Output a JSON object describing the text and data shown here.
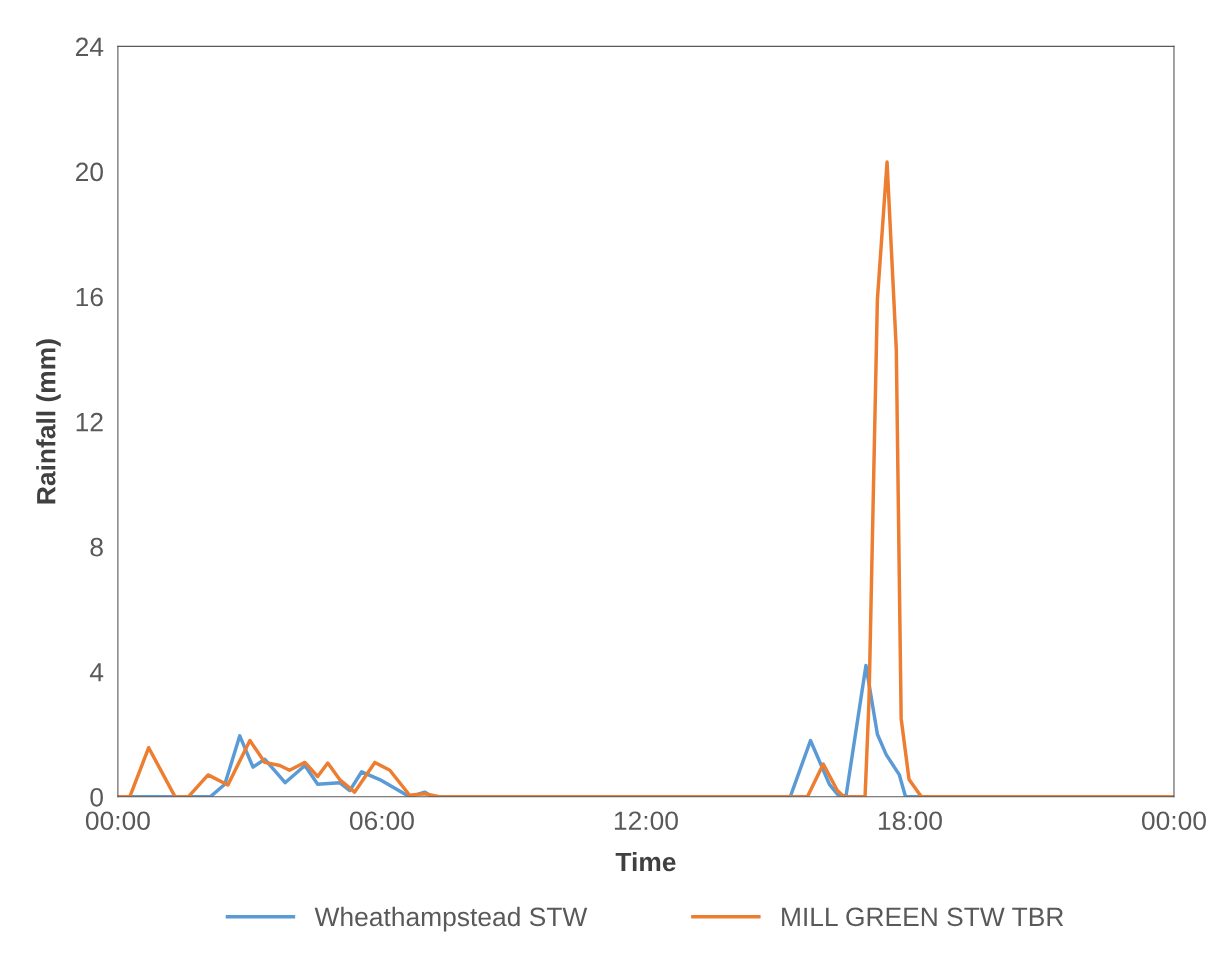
{
  "chart_data": {
    "type": "line",
    "xlabel": "Time",
    "ylabel": "Rainfall (mm)",
    "xlim": [
      0,
      24
    ],
    "xticks": [
      {
        "value": 0,
        "label": "00:00"
      },
      {
        "value": 6,
        "label": "06:00"
      },
      {
        "value": 12,
        "label": "12:00"
      },
      {
        "value": 18,
        "label": "18:00"
      },
      {
        "value": 24,
        "label": "00:00"
      }
    ],
    "ylim": [
      0,
      24
    ],
    "yticks": [
      0,
      4,
      8,
      12,
      16,
      20,
      24
    ],
    "grid": false,
    "legend": "bottom",
    "marker": "none",
    "line_style": "solid",
    "series": [
      {
        "name": "Wheathampstead STW",
        "color": "#5b9bd5",
        "x": [
          0,
          2.1,
          2.43,
          2.77,
          3.07,
          3.34,
          3.8,
          4.25,
          4.54,
          5.04,
          5.27,
          5.54,
          5.95,
          6.63,
          6.97,
          7.15,
          15.28,
          15.74,
          16.17,
          16.4,
          16.55,
          17.0,
          17.26,
          17.46,
          17.76,
          17.9,
          24
        ],
        "values": [
          0,
          0,
          0.4,
          1.95,
          0.95,
          1.2,
          0.45,
          1.0,
          0.4,
          0.45,
          0.2,
          0.8,
          0.55,
          0,
          0.15,
          0,
          0,
          1.8,
          0.4,
          0,
          0.05,
          4.2,
          2.0,
          1.35,
          0.7,
          0,
          0
        ]
      },
      {
        "name": "MILL GREEN STW TBR",
        "color": "#ed7d31",
        "x": [
          0,
          0.27,
          0.7,
          1.3,
          1.6,
          2.05,
          2.5,
          3.0,
          3.34,
          3.68,
          3.9,
          4.25,
          4.54,
          4.77,
          5.04,
          5.38,
          5.84,
          6.18,
          6.63,
          6.97,
          7.3,
          15.67,
          16.03,
          16.35,
          16.5,
          16.98,
          17.07,
          17.26,
          17.48,
          17.69,
          17.8,
          17.98,
          18.26,
          24
        ],
        "values": [
          0,
          0,
          1.57,
          0,
          0,
          0.7,
          0.38,
          1.8,
          1.1,
          1.0,
          0.85,
          1.1,
          0.65,
          1.08,
          0.55,
          0.15,
          1.1,
          0.85,
          0.05,
          0.1,
          0,
          0,
          1.05,
          0.2,
          0,
          0,
          3.1,
          15.9,
          20.3,
          14.3,
          2.5,
          0.55,
          0,
          0
        ]
      }
    ]
  }
}
